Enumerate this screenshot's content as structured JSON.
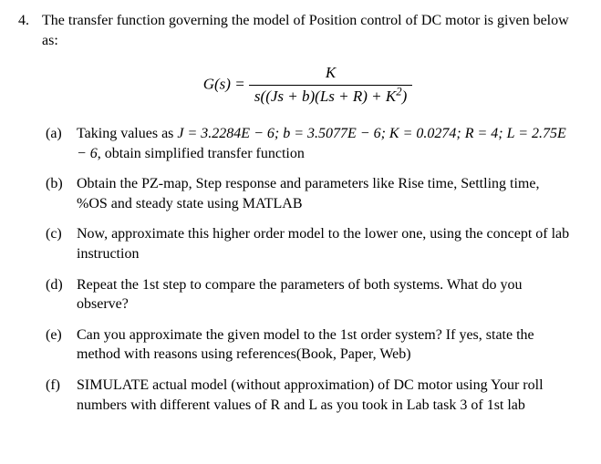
{
  "problem": {
    "number": "4.",
    "intro": "The transfer function governing the model of Position control of DC motor is given below as:",
    "equation": {
      "lhs": "G(s) =",
      "numerator": "K",
      "denominator_prefix": "s((Js + b)(Ls + R) + K",
      "denominator_exp": "2",
      "denominator_suffix": ")"
    },
    "parts": {
      "a": {
        "label": "(a)",
        "text_prefix": "Taking values as ",
        "values": "J = 3.2284E − 6; b = 3.5077E − 6; K = 0.0274; R = 4; L = 2.75E − 6",
        "text_suffix": ", obtain simplified transfer function"
      },
      "b": {
        "label": "(b)",
        "text": "Obtain the PZ-map, Step response and parameters like Rise time, Settling time, %OS and steady state using MATLAB"
      },
      "c": {
        "label": "(c)",
        "text": "Now, approximate this higher order model to the lower one, using the concept of lab instruction"
      },
      "d": {
        "label": "(d)",
        "text": "Repeat the 1st step to compare the parameters of both systems. What do you observe?"
      },
      "e": {
        "label": "(e)",
        "text": "Can you approximate the given model to the 1st order system? If yes, state the method with reasons using references(Book, Paper, Web)"
      },
      "f": {
        "label": "(f)",
        "text": "SIMULATE actual model (without approximation) of DC motor using Your roll numbers with different values of R and L as you took in Lab task 3 of 1st lab"
      }
    }
  }
}
